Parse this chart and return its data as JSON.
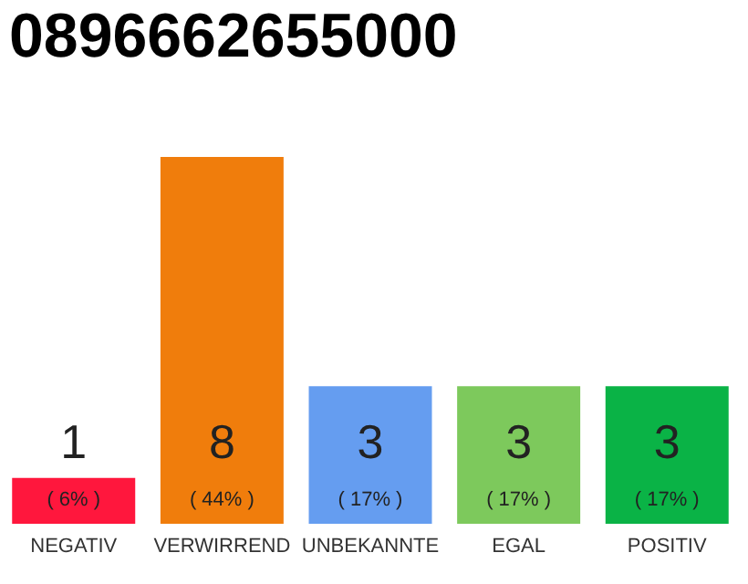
{
  "chart_data": {
    "type": "bar",
    "title": "0896662655000",
    "categories": [
      "NEGATIV",
      "VERWIRREND",
      "UNBEKANNTE",
      "EGAL",
      "POSITIV"
    ],
    "values": [
      1,
      8,
      3,
      3,
      3
    ],
    "colors": [
      "#ff173d",
      "#f07d0c",
      "#659df0",
      "#7dc95c",
      "#0ab346"
    ],
    "data_labels": true,
    "annotations": [
      "( 6% )",
      "( 44% )",
      "( 17% )",
      "( 17% )",
      "( 17% )"
    ]
  }
}
